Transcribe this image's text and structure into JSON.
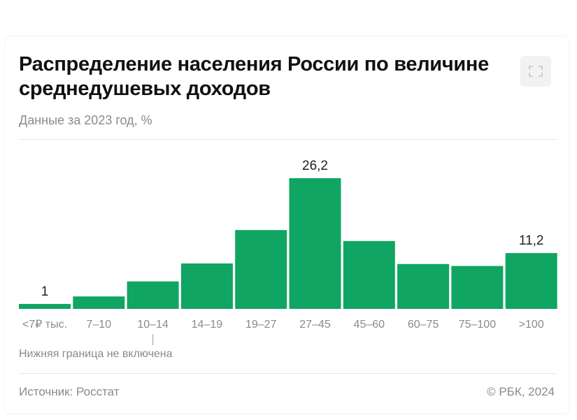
{
  "header": {
    "title": "Распределение населения России по величине среднедушевых доходов",
    "subtitle": "Данные за 2023 год, %"
  },
  "chart_data": {
    "type": "bar",
    "categories": [
      "<7₽ тыс.",
      "7–10",
      "10–14",
      "14–19",
      "19–27",
      "27–45",
      "45–60",
      "60–75",
      "75–100",
      ">100"
    ],
    "values": [
      1.0,
      2.5,
      5.5,
      9.1,
      15.8,
      26.2,
      13.6,
      9.0,
      8.6,
      11.2
    ],
    "data_labels": [
      {
        "category": "<7₽ тыс.",
        "text": "1"
      },
      {
        "category": "27–45",
        "text": "26,2"
      },
      {
        "category": ">100",
        "text": "11,2"
      }
    ],
    "ylim": [
      0,
      26.2
    ],
    "grid": false,
    "bar_color": "#10a562"
  },
  "footer": {
    "note": "Нижняя граница не включена",
    "source": "Источник: Росстат",
    "copyright": "© РБК, 2024"
  },
  "icons": {
    "expand": "expand-icon"
  }
}
